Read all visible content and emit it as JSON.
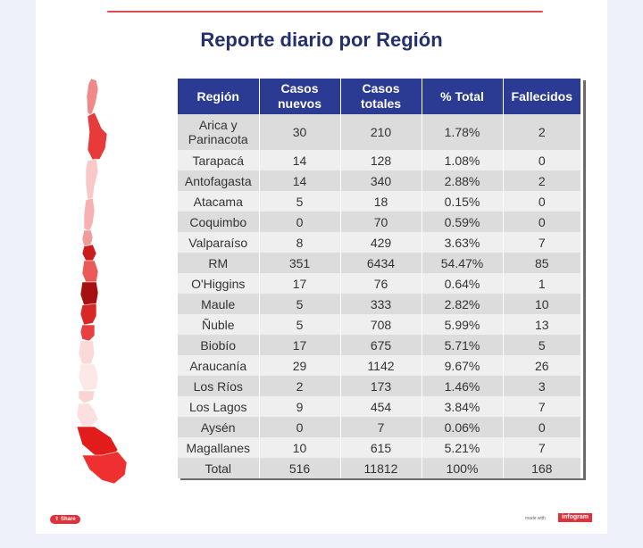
{
  "title": "Reporte diario por Región",
  "table": {
    "headers": [
      [
        "Región"
      ],
      [
        "Casos",
        "nuevos"
      ],
      [
        "Casos",
        "totales"
      ],
      [
        "% Total"
      ],
      [
        "Fallecidos"
      ]
    ],
    "rows": [
      {
        "region": "Arica y Parinacota",
        "region_lines": [
          "Arica y",
          "Parinacota"
        ],
        "nuevos": "30",
        "totales": "210",
        "pct": "1.78%",
        "fallecidos": "2"
      },
      {
        "region": "Tarapacá",
        "nuevos": "14",
        "totales": "128",
        "pct": "1.08%",
        "fallecidos": "0"
      },
      {
        "region": "Antofagasta",
        "nuevos": "14",
        "totales": "340",
        "pct": "2.88%",
        "fallecidos": "2"
      },
      {
        "region": "Atacama",
        "nuevos": "5",
        "totales": "18",
        "pct": "0.15%",
        "fallecidos": "0"
      },
      {
        "region": "Coquimbo",
        "nuevos": "0",
        "totales": "70",
        "pct": "0.59%",
        "fallecidos": "0"
      },
      {
        "region": "Valparaíso",
        "nuevos": "8",
        "totales": "429",
        "pct": "3.63%",
        "fallecidos": "7"
      },
      {
        "region": "RM",
        "nuevos": "351",
        "totales": "6434",
        "pct": "54.47%",
        "fallecidos": "85"
      },
      {
        "region": "O'Higgins",
        "nuevos": "17",
        "totales": "76",
        "pct": "0.64%",
        "fallecidos": "1"
      },
      {
        "region": "Maule",
        "nuevos": "5",
        "totales": "333",
        "pct": "2.82%",
        "fallecidos": "10"
      },
      {
        "region": "Ñuble",
        "nuevos": "5",
        "totales": "708",
        "pct": "5.99%",
        "fallecidos": "13"
      },
      {
        "region": "Biobío",
        "nuevos": "17",
        "totales": "675",
        "pct": "5.71%",
        "fallecidos": "5"
      },
      {
        "region": "Araucanía",
        "nuevos": "29",
        "totales": "1142",
        "pct": "9.67%",
        "fallecidos": "26"
      },
      {
        "region": "Los Ríos",
        "nuevos": "2",
        "totales": "173",
        "pct": "1.46%",
        "fallecidos": "3"
      },
      {
        "region": "Los Lagos",
        "nuevos": "9",
        "totales": "454",
        "pct": "3.84%",
        "fallecidos": "7"
      },
      {
        "region": "Aysén",
        "nuevos": "0",
        "totales": "7",
        "pct": "0.06%",
        "fallecidos": "0"
      },
      {
        "region": "Magallanes",
        "nuevos": "10",
        "totales": "615",
        "pct": "5.21%",
        "fallecidos": "7"
      }
    ],
    "total": {
      "region": "Total",
      "nuevos": "516",
      "totales": "11812",
      "pct": "100%",
      "fallecidos": "168"
    }
  },
  "chart_data": {
    "type": "table",
    "title": "Reporte diario por Región",
    "columns": [
      "Región",
      "Casos nuevos",
      "Casos totales",
      "% Total",
      "Fallecidos"
    ],
    "rows": [
      [
        "Arica y Parinacota",
        30,
        210,
        1.78,
        2
      ],
      [
        "Tarapacá",
        14,
        128,
        1.08,
        0
      ],
      [
        "Antofagasta",
        14,
        340,
        2.88,
        2
      ],
      [
        "Atacama",
        5,
        18,
        0.15,
        0
      ],
      [
        "Coquimbo",
        0,
        70,
        0.59,
        0
      ],
      [
        "Valparaíso",
        8,
        429,
        3.63,
        7
      ],
      [
        "RM",
        351,
        6434,
        54.47,
        85
      ],
      [
        "O'Higgins",
        17,
        76,
        0.64,
        1
      ],
      [
        "Maule",
        5,
        333,
        2.82,
        10
      ],
      [
        "Ñuble",
        5,
        708,
        5.99,
        13
      ],
      [
        "Biobío",
        17,
        675,
        5.71,
        5
      ],
      [
        "Araucanía",
        29,
        1142,
        9.67,
        26
      ],
      [
        "Los Ríos",
        2,
        173,
        1.46,
        3
      ],
      [
        "Los Lagos",
        9,
        454,
        3.84,
        7
      ],
      [
        "Aysén",
        0,
        7,
        0.06,
        0
      ],
      [
        "Magallanes",
        10,
        615,
        5.21,
        7
      ]
    ],
    "total": [
      "Total",
      516,
      11812,
      100,
      168
    ]
  },
  "map": {
    "region_colors": [
      {
        "region": "Arica y Parinacota",
        "color": "#f08a8a"
      },
      {
        "region": "Tarapacá",
        "color": "#e83a3a"
      },
      {
        "region": "Antofagasta",
        "color": "#f9c9c9"
      },
      {
        "region": "Atacama",
        "color": "#f7b1b1"
      },
      {
        "region": "Coquimbo",
        "color": "#f29b9b"
      },
      {
        "region": "Valparaíso",
        "color": "#cc1b1b"
      },
      {
        "region": "RM",
        "color": "#ec5959"
      },
      {
        "region": "O'Higgins",
        "color": "#a61010"
      },
      {
        "region": "Maule",
        "color": "#d72727"
      },
      {
        "region": "Ñuble",
        "color": "#e84040"
      },
      {
        "region": "Biobío",
        "color": "#fbd9d9"
      },
      {
        "region": "Araucanía",
        "color": "#fde8e8"
      },
      {
        "region": "Los Ríos",
        "color": "#fbd3d3"
      },
      {
        "region": "Los Lagos",
        "color": "#fce0e0"
      },
      {
        "region": "Aysén",
        "color": "#e21b1b"
      },
      {
        "region": "Magallanes",
        "color": "#ee3030"
      }
    ]
  },
  "footer": {
    "share_label": "Share",
    "made_with": "made with",
    "brand": "infogram"
  },
  "colors": {
    "header_bg": "#2b3a93",
    "title": "#24306e",
    "accent": "#e0313a"
  }
}
